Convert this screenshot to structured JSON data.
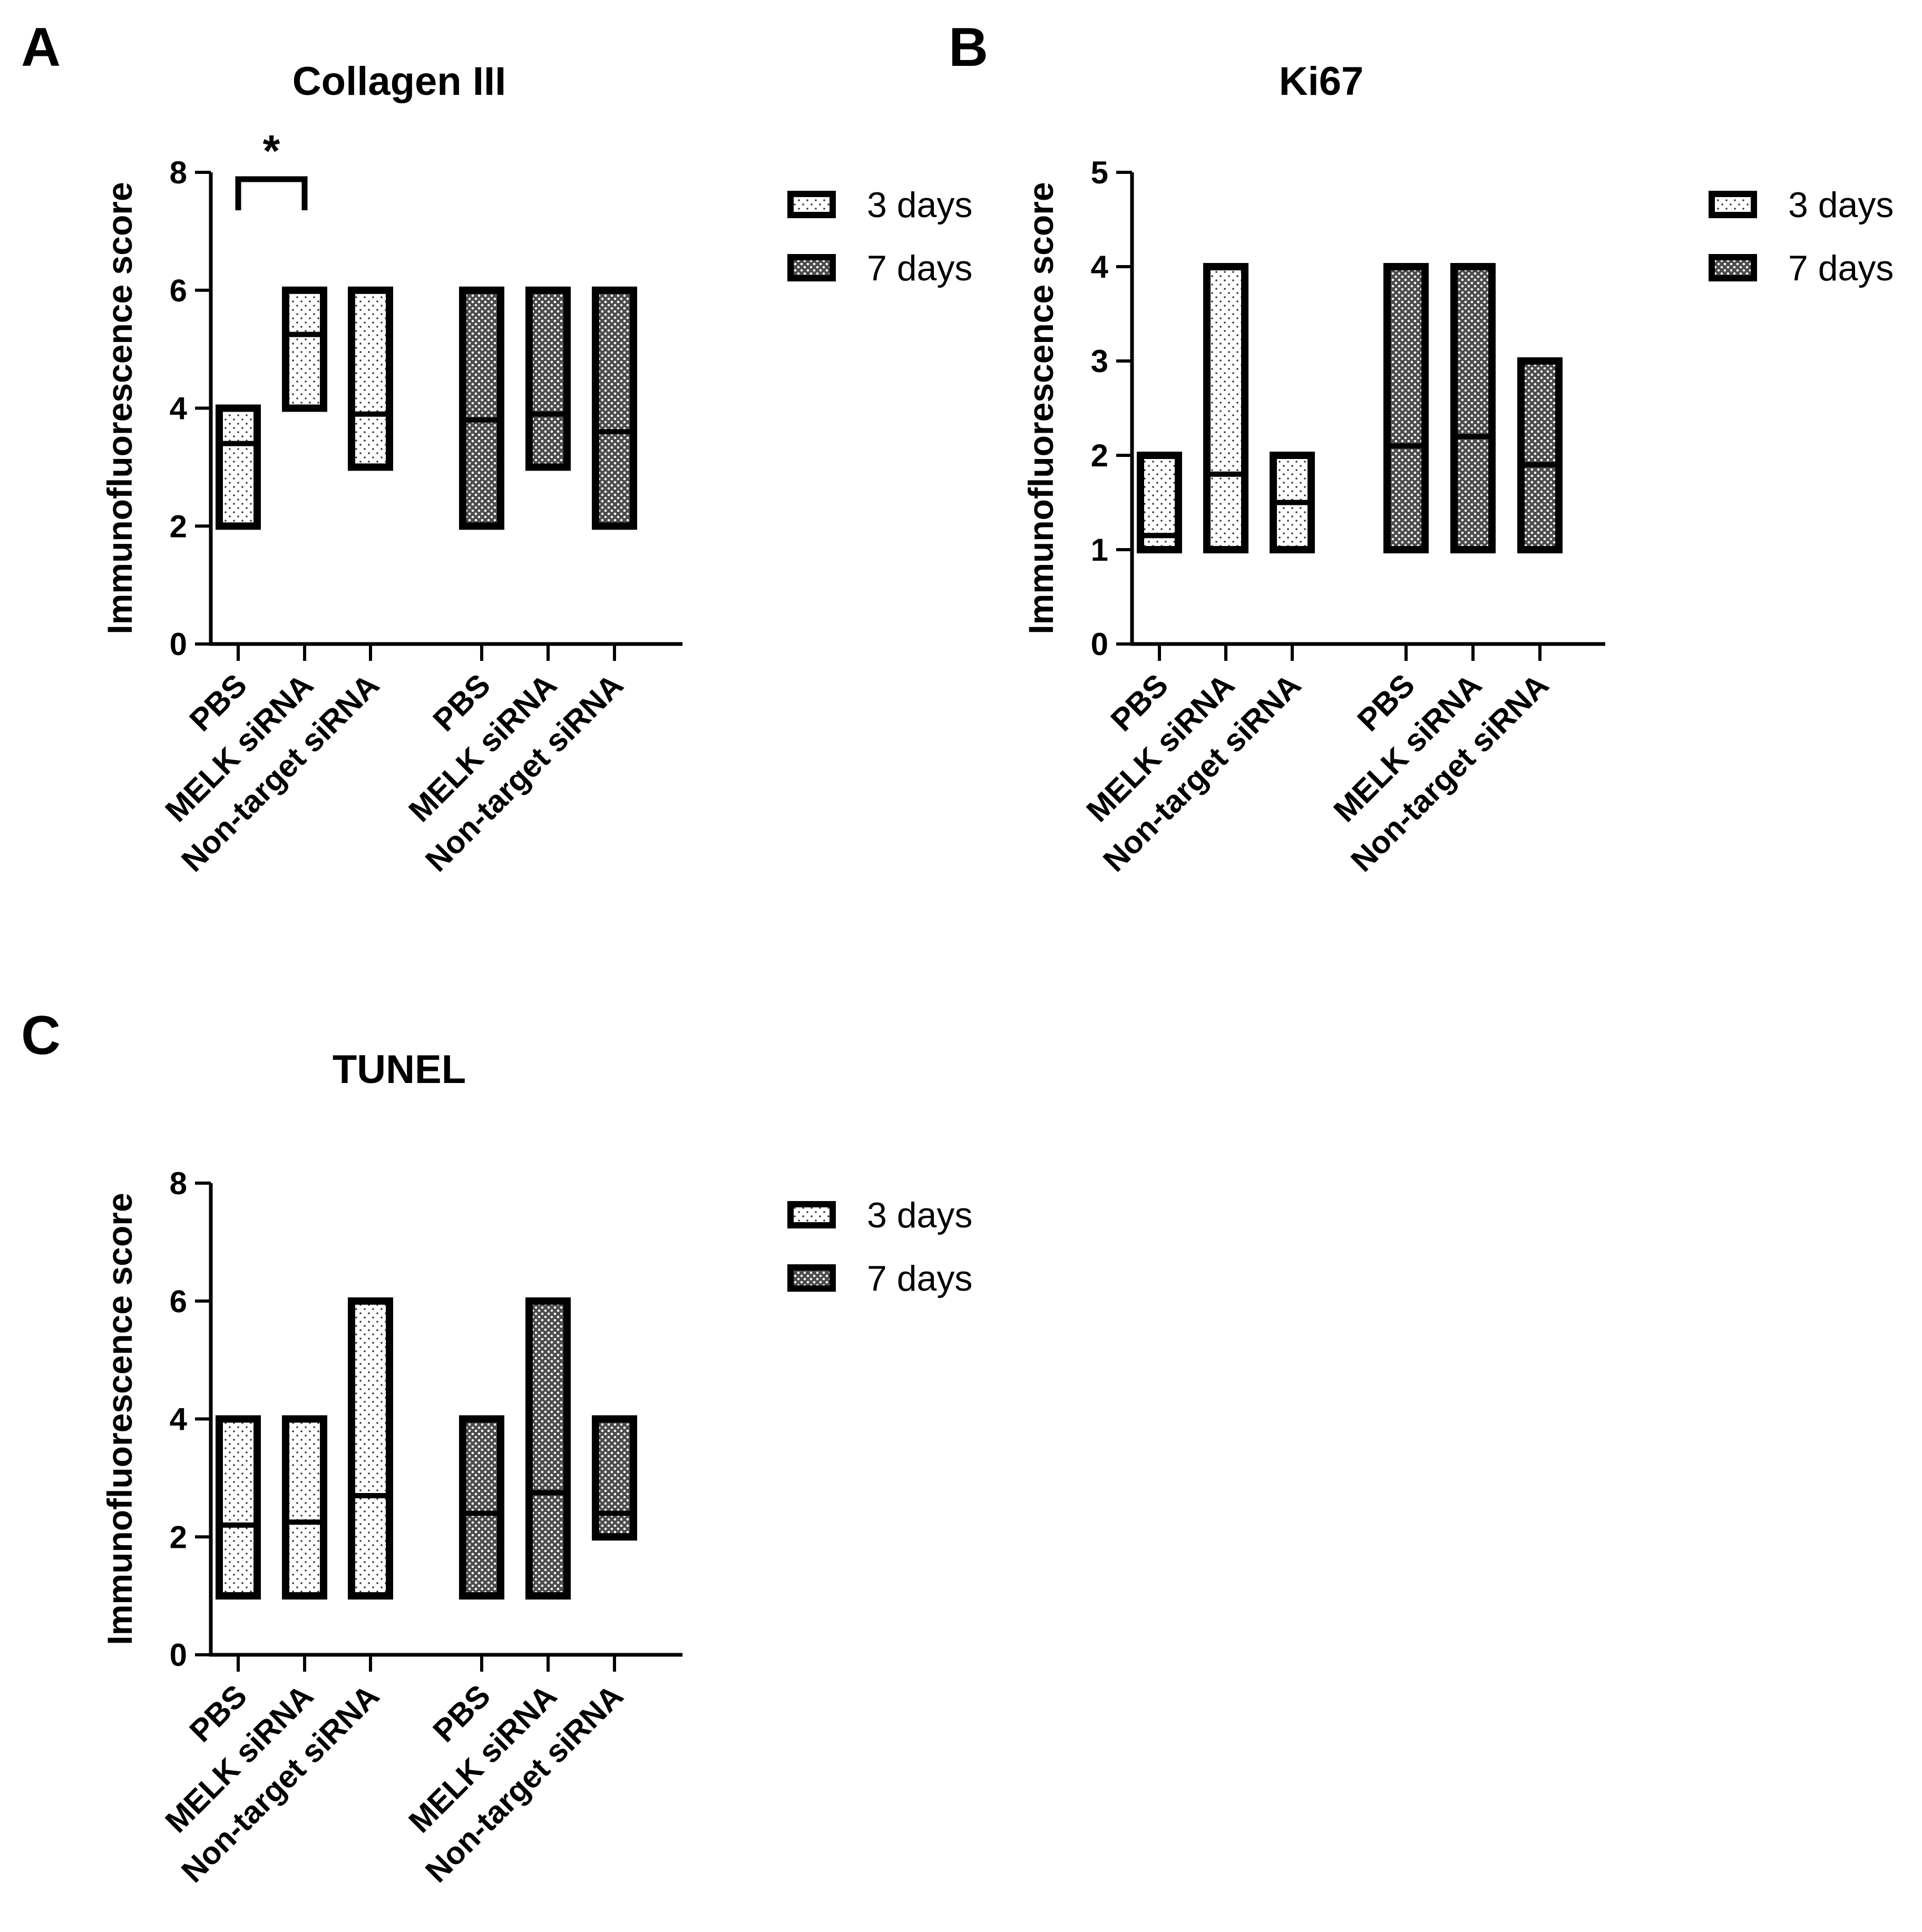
{
  "chart_data": [
    {
      "panel": "A",
      "type": "bar",
      "title": "Collagen III",
      "ylabel": "Immunofluorescence score",
      "ylim": [
        0,
        8
      ],
      "yticks": [
        "0",
        "2",
        "4",
        "6",
        "8"
      ],
      "categories": [
        "PBS",
        "MELK siRNA",
        "Non-target siRNA",
        "PBS",
        "MELK siRNA",
        "Non-target siRNA"
      ],
      "legend": {
        "placement": "top-right",
        "entries": [
          "3 days",
          "7 days"
        ]
      },
      "series": [
        {
          "name": "3 days",
          "pattern": "dots-sparse",
          "bars": [
            {
              "min": 2,
              "max": 4,
              "mean": 3.4
            },
            {
              "min": 4,
              "max": 6,
              "mean": 5.25
            },
            {
              "min": 3,
              "max": 6,
              "mean": 3.9
            }
          ]
        },
        {
          "name": "7 days",
          "pattern": "dots-dense",
          "bars": [
            {
              "min": 2,
              "max": 6,
              "mean": 3.8
            },
            {
              "min": 3,
              "max": 6,
              "mean": 3.9
            },
            {
              "min": 2,
              "max": 6,
              "mean": 3.6
            }
          ]
        }
      ],
      "significance": [
        {
          "from": 0,
          "to": 1,
          "label": "*"
        }
      ]
    },
    {
      "panel": "B",
      "type": "bar",
      "title": "Ki67",
      "ylabel": "Immunofluorescence score",
      "ylim": [
        0,
        5
      ],
      "yticks": [
        "0",
        "1",
        "2",
        "3",
        "4",
        "5"
      ],
      "categories": [
        "PBS",
        "MELK siRNA",
        "Non-target siRNA",
        "PBS",
        "MELK siRNA",
        "Non-target siRNA"
      ],
      "legend": {
        "placement": "top-right",
        "entries": [
          "3 days",
          "7 days"
        ]
      },
      "series": [
        {
          "name": "3 days",
          "pattern": "dots-sparse",
          "bars": [
            {
              "min": 1,
              "max": 2,
              "mean": 1.15
            },
            {
              "min": 1,
              "max": 4,
              "mean": 1.8
            },
            {
              "min": 1,
              "max": 2,
              "mean": 1.5
            }
          ]
        },
        {
          "name": "7 days",
          "pattern": "dots-dense",
          "bars": [
            {
              "min": 1,
              "max": 4,
              "mean": 2.1
            },
            {
              "min": 1,
              "max": 4,
              "mean": 2.2
            },
            {
              "min": 1,
              "max": 3,
              "mean": 1.9
            }
          ]
        }
      ],
      "significance": []
    },
    {
      "panel": "C",
      "type": "bar",
      "title": "TUNEL",
      "ylabel": "Immunofluorescence score",
      "ylim": [
        0,
        8
      ],
      "yticks": [
        "0",
        "2",
        "4",
        "6",
        "8"
      ],
      "categories": [
        "PBS",
        "MELK siRNA",
        "Non-target siRNA",
        "PBS",
        "MELK siRNA",
        "Non-target siRNA"
      ],
      "legend": {
        "placement": "top-right",
        "entries": [
          "3 days",
          "7 days"
        ]
      },
      "series": [
        {
          "name": "3 days",
          "pattern": "dots-sparse",
          "bars": [
            {
              "min": 1,
              "max": 4,
              "mean": 2.2
            },
            {
              "min": 1,
              "max": 4,
              "mean": 2.25
            },
            {
              "min": 1,
              "max": 6,
              "mean": 2.7
            }
          ]
        },
        {
          "name": "7 days",
          "pattern": "dots-dense",
          "bars": [
            {
              "min": 1,
              "max": 4,
              "mean": 2.4
            },
            {
              "min": 1,
              "max": 6,
              "mean": 2.75
            },
            {
              "min": 2,
              "max": 4,
              "mean": 2.4
            }
          ]
        }
      ],
      "significance": []
    }
  ]
}
